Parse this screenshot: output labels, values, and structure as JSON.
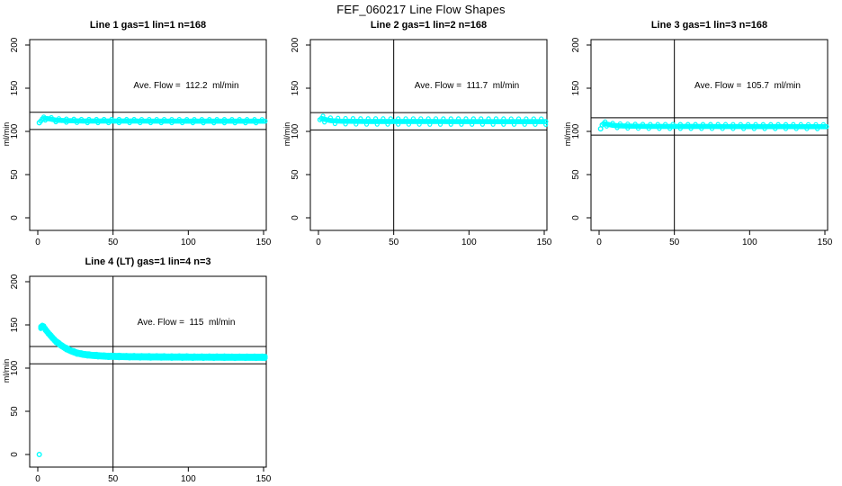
{
  "page_title": "FEF_060217  Line Flow Shapes",
  "colors": {
    "data_marker": "#00FFFF",
    "axis": "#000000",
    "background": "#FFFFFF"
  },
  "chart_data": [
    {
      "type": "scatter",
      "title": "Line 1 gas=1 lin=1 n=168",
      "annotation": "Ave. Flow =  112.2  ml/min",
      "ave_flow": 112.2,
      "ylabel": "ml/min",
      "xticks": [
        0,
        50,
        100,
        150
      ],
      "yticks": [
        0,
        50,
        100,
        150,
        200
      ],
      "xlim": [
        -5,
        152
      ],
      "ylim": [
        -15,
        212
      ],
      "vline_x": 50,
      "hlines": [
        102.2,
        122.2
      ],
      "marker": "open-circle",
      "extra_points": [
        [
          1,
          110
        ]
      ],
      "series_anchors": [
        [
          2,
          112
        ],
        [
          3,
          114.5
        ],
        [
          5,
          115
        ],
        [
          8,
          114.5
        ],
        [
          12,
          113
        ],
        [
          18,
          112.5
        ],
        [
          30,
          112
        ],
        [
          151,
          111.8
        ]
      ],
      "x_end": 151,
      "jitter": 1.0,
      "band_layers": 1
    },
    {
      "type": "scatter",
      "title": "Line 2 gas=1 lin=2 n=168",
      "annotation": "Ave. Flow =  111.7  ml/min",
      "ave_flow": 111.7,
      "ylabel": "ml/min",
      "xticks": [
        0,
        50,
        100,
        150
      ],
      "yticks": [
        0,
        50,
        100,
        150,
        200
      ],
      "xlim": [
        -5,
        152
      ],
      "ylim": [
        -15,
        212
      ],
      "vline_x": 50,
      "hlines": [
        101.7,
        121.7
      ],
      "marker": "open-circle",
      "extra_points": [],
      "series_anchors": [
        [
          1,
          113.5
        ],
        [
          2,
          115
        ],
        [
          4,
          114
        ],
        [
          8,
          112.5
        ],
        [
          15,
          111.8
        ],
        [
          30,
          111.5
        ],
        [
          151,
          111.3
        ]
      ],
      "x_end": 151,
      "jitter": 1.6,
      "band_layers": 1
    },
    {
      "type": "scatter",
      "title": "Line 3 gas=1 lin=3 n=168",
      "annotation": "Ave. Flow =  105.7  ml/min",
      "ave_flow": 105.7,
      "ylabel": "ml/min",
      "xticks": [
        0,
        50,
        100,
        150
      ],
      "yticks": [
        0,
        50,
        100,
        150,
        200
      ],
      "xlim": [
        -5,
        152
      ],
      "ylim": [
        -15,
        212
      ],
      "vline_x": 50,
      "hlines": [
        95.7,
        115.7
      ],
      "marker": "open-circle",
      "extra_points": [
        [
          1,
          103
        ]
      ],
      "series_anchors": [
        [
          2,
          107.5
        ],
        [
          3,
          109
        ],
        [
          5,
          108.5
        ],
        [
          9,
          107
        ],
        [
          15,
          106.3
        ],
        [
          30,
          105.8
        ],
        [
          151,
          105.5
        ]
      ],
      "x_end": 151,
      "jitter": 1.2,
      "band_layers": 1
    },
    {
      "type": "scatter",
      "title": "Line 4 (LT) gas=1 lin=4 n=3",
      "annotation": "Ave. Flow =  115  ml/min",
      "ave_flow": 115,
      "ylabel": "ml/min",
      "xticks": [
        0,
        50,
        100,
        150
      ],
      "yticks": [
        0,
        50,
        100,
        150,
        200
      ],
      "xlim": [
        -5,
        152
      ],
      "ylim": [
        -15,
        212
      ],
      "vline_x": 50,
      "hlines": [
        105,
        125
      ],
      "marker": "open-circle",
      "extra_points": [
        [
          1,
          0
        ]
      ],
      "series_anchors": [
        [
          2,
          147
        ],
        [
          3,
          148.5
        ],
        [
          4,
          147.5
        ],
        [
          5,
          145
        ],
        [
          7,
          140.5
        ],
        [
          9,
          136.5
        ],
        [
          12,
          131
        ],
        [
          15,
          127
        ],
        [
          18,
          123.5
        ],
        [
          22,
          120
        ],
        [
          26,
          117.5
        ],
        [
          30,
          116
        ],
        [
          36,
          114.8
        ],
        [
          45,
          113.8
        ],
        [
          60,
          113.2
        ],
        [
          90,
          112.8
        ],
        [
          151,
          112.5
        ]
      ],
      "x_end": 151,
      "jitter": 0.8,
      "band_layers": 2
    }
  ]
}
